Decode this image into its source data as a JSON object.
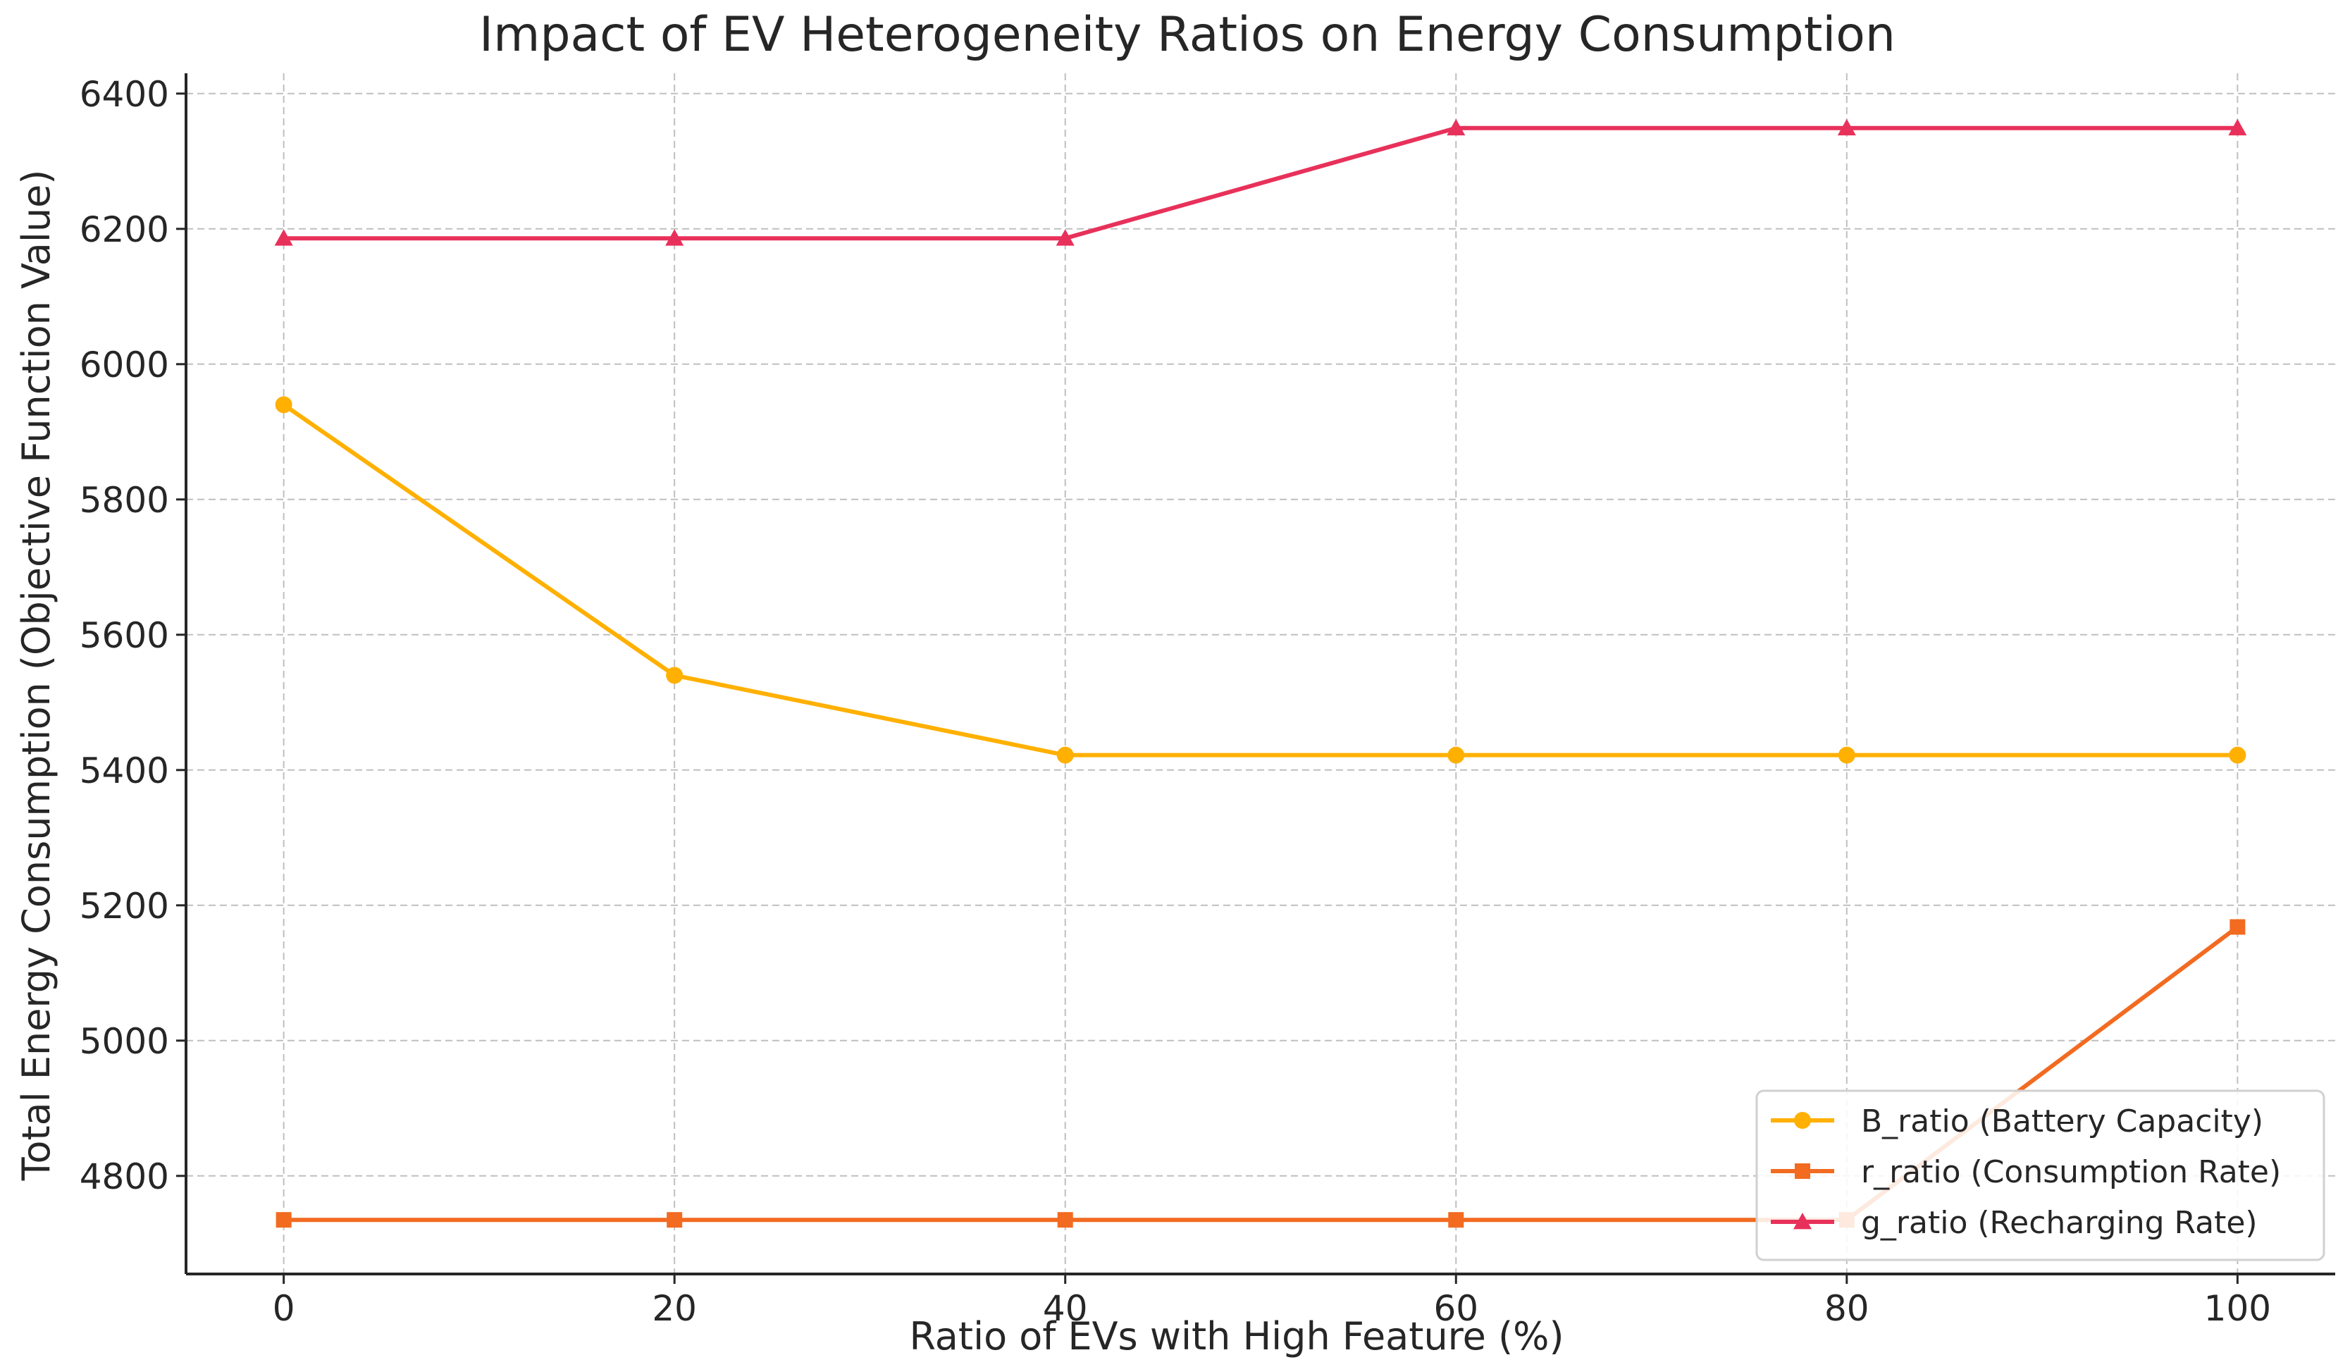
{
  "chart_data": {
    "type": "line",
    "title": "Impact of EV Heterogeneity Ratios on Energy Consumption",
    "xlabel": "Ratio of EVs with High Feature (%)",
    "ylabel": "Total Energy Consumption (Objective Function Value)",
    "x": [
      0,
      20,
      40,
      60,
      80,
      100
    ],
    "xlim": [
      -5,
      105
    ],
    "ylim": [
      4655,
      6430
    ],
    "xticks": [
      0,
      20,
      40,
      60,
      80,
      100
    ],
    "yticks": [
      4800,
      5000,
      5200,
      5400,
      5600,
      5800,
      6000,
      6200,
      6400
    ],
    "grid": true,
    "legend_position": "bottom-right",
    "series": [
      {
        "name": "B_ratio (Battery Capacity)",
        "marker": "circle",
        "color": "#FFB000",
        "values": [
          5940,
          5540,
          5422,
          5422,
          5422,
          5422
        ]
      },
      {
        "name": "r_ratio (Consumption Rate)",
        "marker": "square",
        "color": "#F26B21",
        "values": [
          4735,
          4735,
          4735,
          4735,
          4735,
          5168
        ]
      },
      {
        "name": "g_ratio (Recharging Rate)",
        "marker": "triangle",
        "color": "#E8315A",
        "values": [
          6186,
          6186,
          6186,
          6349,
          6349,
          6349
        ]
      }
    ]
  }
}
